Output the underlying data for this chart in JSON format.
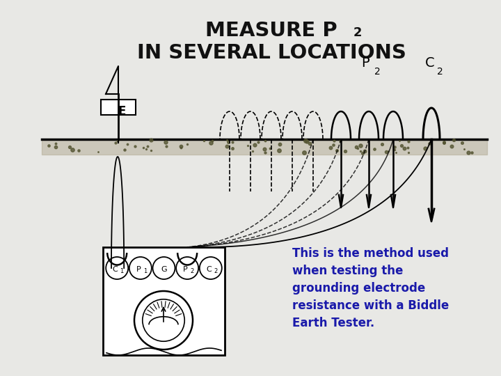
{
  "bg_color": "#e8e8e5",
  "text_color": "#111111",
  "annotation_color": "#1a1aaa",
  "annotation_text": "This is the method used\nwhen testing the\ngrounding electrode\nresistance with a Biddle\nEarth Tester.",
  "title1": "MEASURE P",
  "title1_sub": "2",
  "title2": "IN SEVERAL LOCATIONS",
  "label_E": "E",
  "label_P2": "P",
  "label_P2_sub": "2",
  "label_C2": "C",
  "label_C2_sub": "2",
  "terminal_labels": [
    "C",
    "P",
    "G",
    "P",
    "C"
  ],
  "terminal_subs": [
    "1",
    "1",
    "",
    "2",
    "2"
  ]
}
